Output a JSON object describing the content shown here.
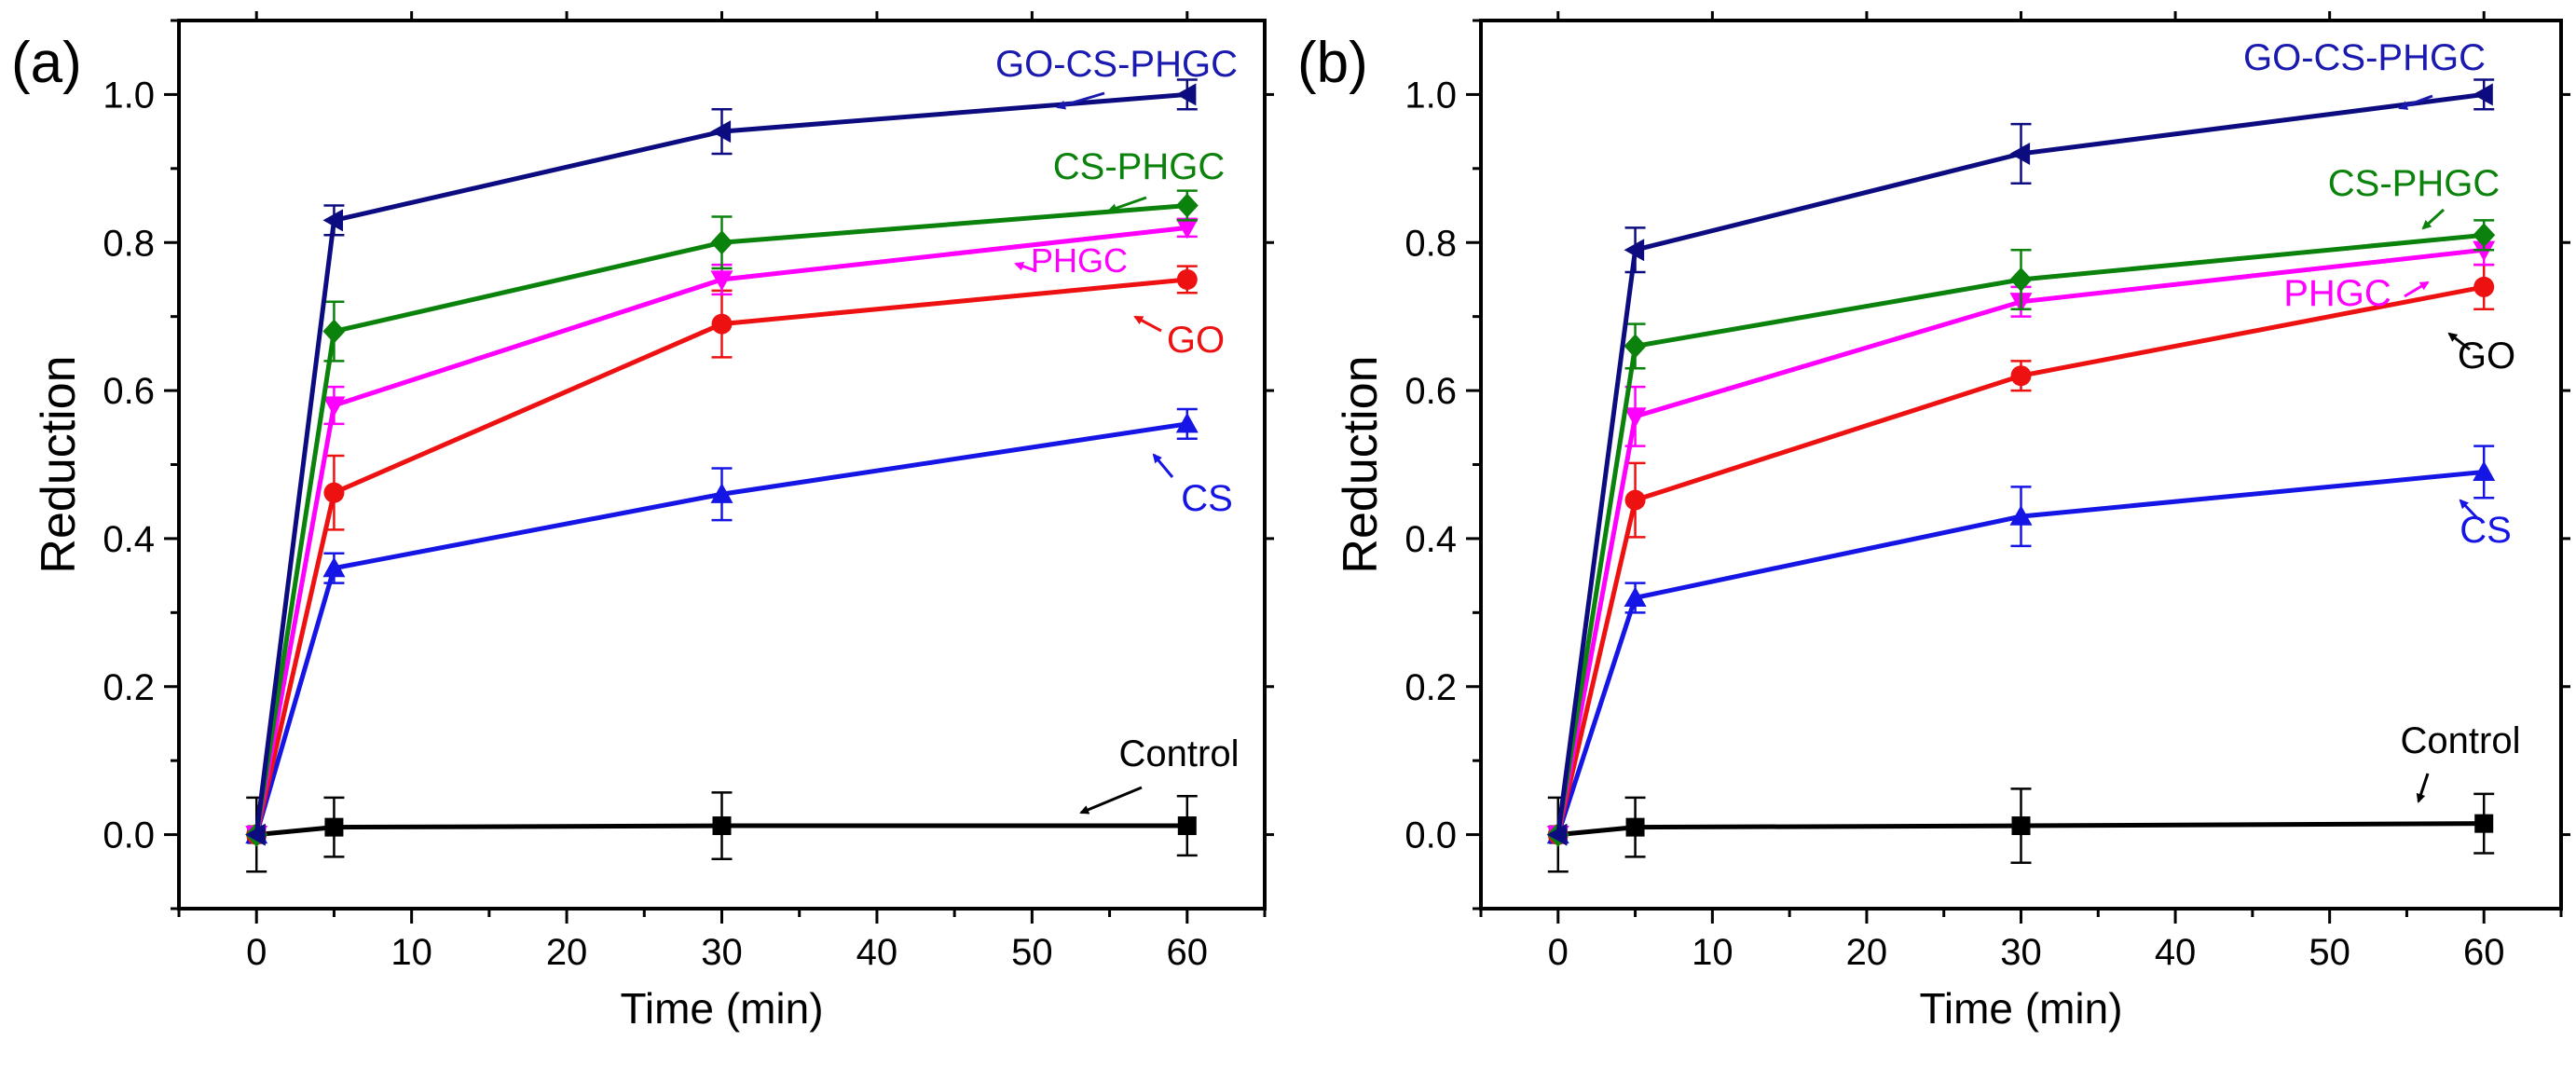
{
  "chart_data": [
    {
      "panel_label": "(a)",
      "type": "line",
      "xlabel": "Time (min)",
      "ylabel": "Reduction",
      "xlim": [
        -5,
        65
      ],
      "ylim": [
        -0.1,
        1.1
      ],
      "xticks": [
        0,
        10,
        20,
        30,
        40,
        50,
        60
      ],
      "yticks": [
        0.0,
        0.2,
        0.4,
        0.6,
        0.8,
        1.0
      ],
      "x": [
        0,
        5,
        30,
        60
      ],
      "series": [
        {
          "name": "Control",
          "color": "#000000",
          "marker": "square",
          "values": [
            0.0,
            0.01,
            0.012,
            0.012
          ],
          "errors": [
            0.05,
            0.04,
            0.045,
            0.04
          ],
          "label": "Control",
          "label_color": "#000000"
        },
        {
          "name": "CS",
          "color": "#1515e6",
          "marker": "triangle-up",
          "values": [
            0.0,
            0.36,
            0.46,
            0.555
          ],
          "errors": [
            0.0,
            0.02,
            0.035,
            0.02
          ],
          "label": "CS",
          "label_color": "#1515e6"
        },
        {
          "name": "GO",
          "color": "#ee1111",
          "marker": "circle",
          "values": [
            0.0,
            0.462,
            0.69,
            0.75
          ],
          "errors": [
            0.0,
            0.05,
            0.045,
            0.018
          ],
          "label": "GO",
          "label_color": "#ee1111"
        },
        {
          "name": "PHGC",
          "color": "#ff00ff",
          "marker": "triangle-down",
          "values": [
            0.0,
            0.58,
            0.75,
            0.82
          ],
          "errors": [
            0.0,
            0.025,
            0.02,
            0.012
          ],
          "label": "PHGC",
          "label_color": "#ff00ff"
        },
        {
          "name": "CS-PHGC",
          "color": "#0b820b",
          "marker": "diamond",
          "values": [
            0.0,
            0.68,
            0.8,
            0.85
          ],
          "errors": [
            0.0,
            0.04,
            0.035,
            0.02
          ],
          "label": "CS-PHGC",
          "label_color": "#0b820b"
        },
        {
          "name": "GO-CS-PHGC",
          "color": "#0c0c80",
          "marker": "triangle-left",
          "values": [
            0.0,
            0.83,
            0.95,
            1.0
          ],
          "errors": [
            0.0,
            0.02,
            0.03,
            0.02
          ],
          "label": "GO-CS-PHGC",
          "label_color": "#1a1ab0"
        }
      ]
    },
    {
      "panel_label": "(b)",
      "type": "line",
      "xlabel": "Time (min)",
      "ylabel": "Reduction",
      "xlim": [
        -5,
        65
      ],
      "ylim": [
        -0.1,
        1.1
      ],
      "xticks": [
        0,
        10,
        20,
        30,
        40,
        50,
        60
      ],
      "yticks": [
        0.0,
        0.2,
        0.4,
        0.6,
        0.8,
        1.0
      ],
      "x": [
        0,
        5,
        30,
        60
      ],
      "series": [
        {
          "name": "Control",
          "color": "#000000",
          "marker": "square",
          "values": [
            0.0,
            0.01,
            0.012,
            0.015
          ],
          "errors": [
            0.05,
            0.04,
            0.05,
            0.04
          ],
          "label": "Control",
          "label_color": "#000000"
        },
        {
          "name": "CS",
          "color": "#1515e6",
          "marker": "triangle-up",
          "values": [
            0.0,
            0.32,
            0.43,
            0.49
          ],
          "errors": [
            0.0,
            0.02,
            0.04,
            0.035
          ],
          "label": "CS",
          "label_color": "#1515e6"
        },
        {
          "name": "GO",
          "color": "#ee1111",
          "marker": "circle",
          "values": [
            0.0,
            0.452,
            0.62,
            0.74
          ],
          "errors": [
            0.0,
            0.05,
            0.02,
            0.03
          ],
          "label": "GO",
          "label_color": "#000000"
        },
        {
          "name": "PHGC",
          "color": "#ff00ff",
          "marker": "triangle-down",
          "values": [
            0.0,
            0.565,
            0.72,
            0.79
          ],
          "errors": [
            0.0,
            0.04,
            0.02,
            0.02
          ],
          "label": "PHGC",
          "label_color": "#ff00ff"
        },
        {
          "name": "CS-PHGC",
          "color": "#0b820b",
          "marker": "diamond",
          "values": [
            0.0,
            0.66,
            0.75,
            0.81
          ],
          "errors": [
            0.0,
            0.03,
            0.04,
            0.02
          ],
          "label": "CS-PHGC",
          "label_color": "#0b820b"
        },
        {
          "name": "GO-CS-PHGC",
          "color": "#0c0c80",
          "marker": "triangle-left",
          "values": [
            0.0,
            0.79,
            0.92,
            1.0
          ],
          "errors": [
            0.0,
            0.03,
            0.04,
            0.02
          ],
          "label": "GO-CS-PHGC",
          "label_color": "#1a1ab0"
        }
      ]
    }
  ]
}
